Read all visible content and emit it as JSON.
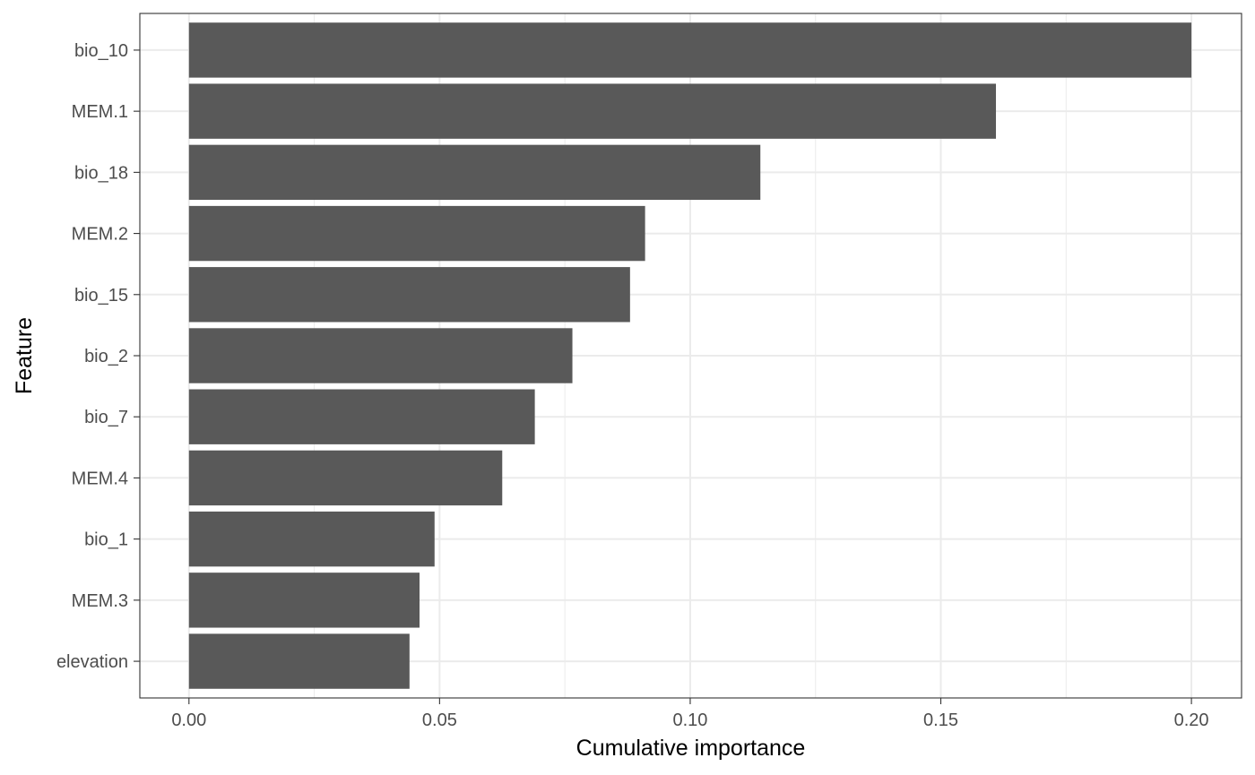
{
  "chart_data": {
    "type": "bar",
    "orientation": "horizontal",
    "title": "",
    "xlabel": "Cumulative importance",
    "ylabel": "Feature",
    "categories": [
      "bio_10",
      "MEM.1",
      "bio_18",
      "MEM.2",
      "bio_15",
      "bio_2",
      "bio_7",
      "MEM.4",
      "bio_1",
      "MEM.3",
      "elevation"
    ],
    "values": [
      0.2,
      0.161,
      0.114,
      0.091,
      0.088,
      0.0765,
      0.069,
      0.0625,
      0.049,
      0.046,
      0.044
    ],
    "xlim": [
      -0.0098,
      0.21
    ],
    "xticks": [
      "0.00",
      "0.05",
      "0.10",
      "0.15",
      "0.20"
    ],
    "grid": true,
    "bar_color": "#595959",
    "grid_color": "#ebebeb",
    "panel_border_color": "#333333"
  }
}
